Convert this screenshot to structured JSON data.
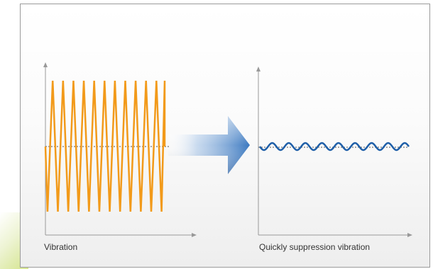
{
  "left_panel": {
    "caption": "Vibration",
    "wave_color": "#f29a1a",
    "wave_peaks": 12
  },
  "right_panel": {
    "caption": "Quickly suppression vibration",
    "wave_color": "#1f5fa8",
    "wave_cycles": 9
  },
  "arrow": {
    "color": "#3a78c0",
    "direction": "right"
  },
  "axis_color": "#999999",
  "baseline_color": "#555555"
}
